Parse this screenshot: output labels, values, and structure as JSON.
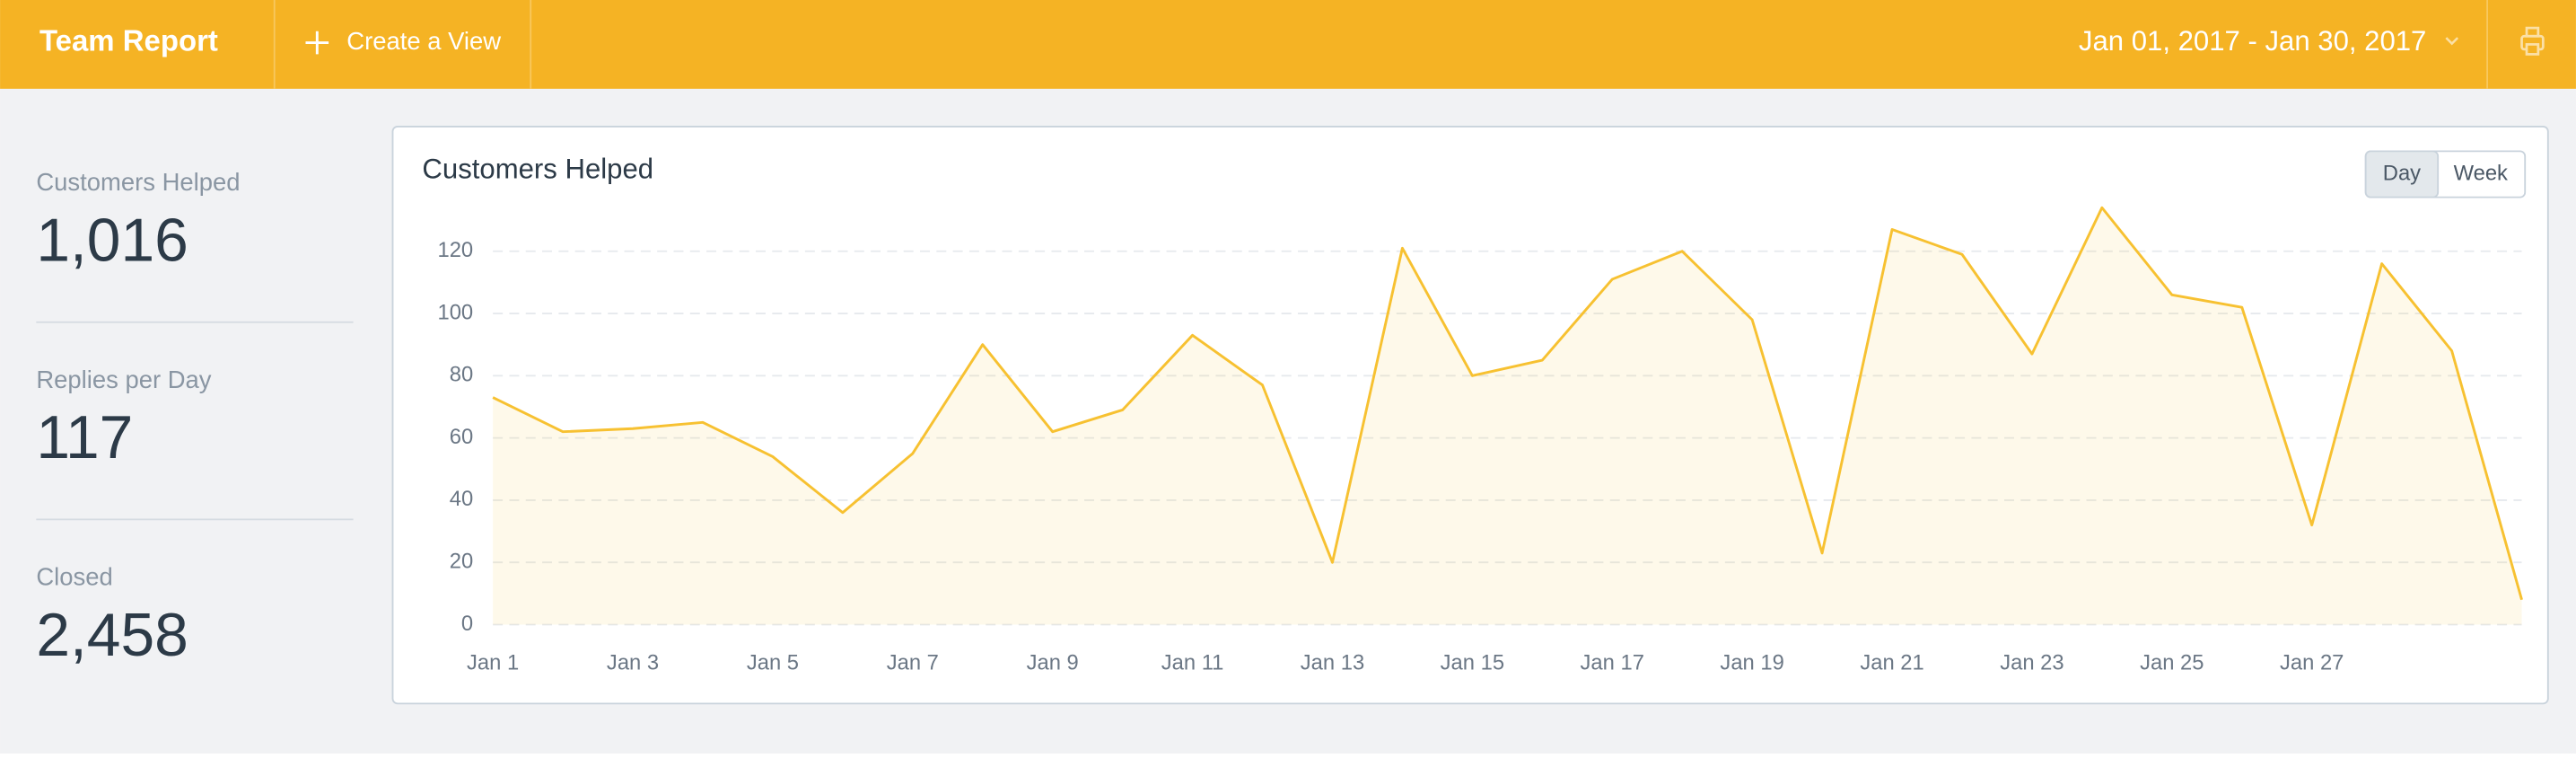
{
  "header": {
    "title": "Team Report",
    "create_view": "Create a View",
    "date_range": "Jan 01, 2017 - Jan 30, 2017"
  },
  "stats": [
    {
      "label": "Customers Helped",
      "value": "1,016"
    },
    {
      "label": "Replies per Day",
      "value": "117"
    },
    {
      "label": "Closed",
      "value": "2,458"
    }
  ],
  "toggle": [
    "Day",
    "Week"
  ],
  "chart_data": {
    "type": "area",
    "title": "Customers Helped",
    "color": "#f7c131",
    "categories": [
      "Jan 1",
      null,
      "Jan 3",
      null,
      "Jan 5",
      null,
      "Jan 7",
      null,
      "Jan 9",
      null,
      "Jan 11",
      null,
      "Jan 13",
      null,
      "Jan 15",
      null,
      "Jan 17",
      null,
      "Jan 19",
      null,
      "Jan 21",
      null,
      "Jan 23",
      null,
      "Jan 25",
      null,
      "Jan 27",
      null,
      null,
      null
    ],
    "values": [
      73,
      62,
      63,
      65,
      54,
      36,
      55,
      90,
      62,
      69,
      93,
      77,
      20,
      121,
      80,
      85,
      111,
      120,
      98,
      23,
      127,
      119,
      87,
      134,
      106,
      102,
      32,
      116,
      88,
      8
    ],
    "ylim": [
      0,
      140
    ],
    "yticks": [
      0,
      20,
      40,
      60,
      80,
      100,
      120
    ],
    "grid": true
  }
}
